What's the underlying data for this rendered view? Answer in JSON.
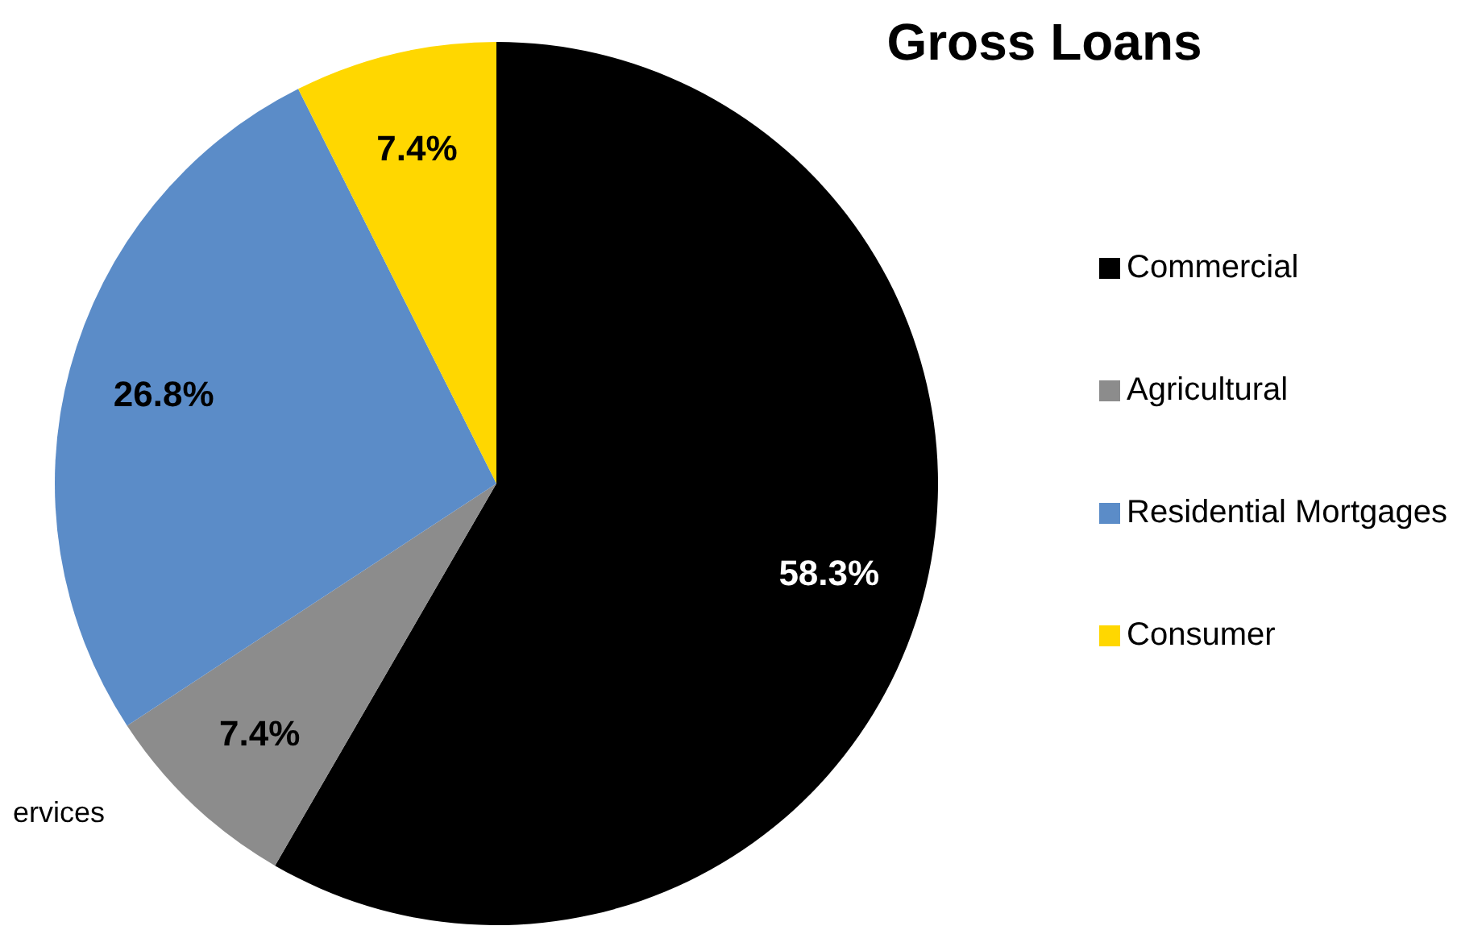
{
  "chart_data": {
    "type": "pie",
    "title": "Gross Loans",
    "categories": [
      "Commercial",
      "Agricultural",
      "Residential Mortgages",
      "Consumer"
    ],
    "values": [
      58.3,
      7.4,
      26.8,
      7.4
    ],
    "colors": [
      "#000000",
      "#8c8c8c",
      "#5b8cc8",
      "#ffd700"
    ],
    "value_labels": [
      "58.3%",
      "7.4%",
      "26.8%",
      "7.4%"
    ],
    "legend": "right",
    "annotations": [
      "ervices"
    ]
  }
}
